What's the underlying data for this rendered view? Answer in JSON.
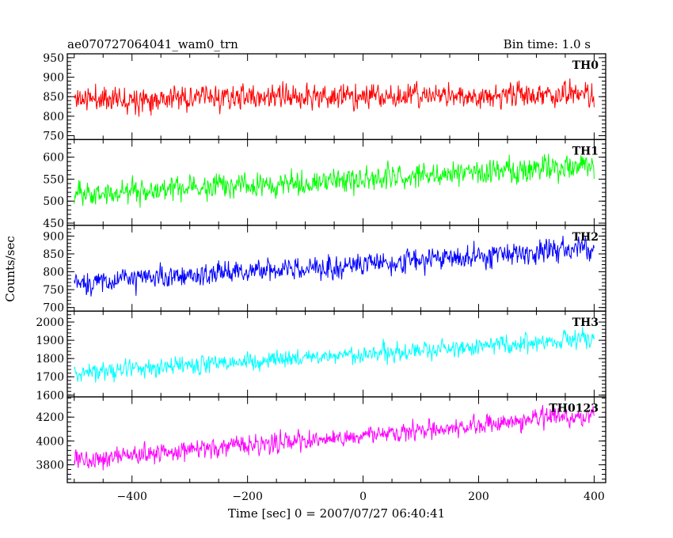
{
  "header": {
    "title": "ae070727064041_wam0_trn",
    "bin_time": "Bin time: 1.0 s"
  },
  "chart_data": {
    "type": "line",
    "xlabel": "Time [sec] 0 = 2007/07/27 06:40:41",
    "ylabel": "Counts/sec",
    "xlim": [
      -512,
      420
    ],
    "x_start": -500,
    "x_end": 400,
    "x_step": 1,
    "x_ticks": [
      -400,
      -200,
      0,
      200,
      400
    ],
    "x_tick_labels": [
      "−400",
      "−200",
      "0",
      "200",
      "400"
    ],
    "panels": [
      {
        "label": "TH0",
        "color": "#ff0000",
        "ylim": [
          740,
          960
        ],
        "y_ticks": [
          750,
          800,
          850,
          900,
          950
        ],
        "trend_start": 845,
        "trend_end": 855,
        "noise": 30,
        "seed": 11
      },
      {
        "label": "TH1",
        "color": "#00ff00",
        "ylim": [
          445,
          640
        ],
        "y_ticks": [
          450,
          500,
          550,
          600
        ],
        "trend_start": 515,
        "trend_end": 580,
        "noise": 26,
        "seed": 23
      },
      {
        "label": "TH2",
        "color": "#0000ff",
        "ylim": [
          690,
          930
        ],
        "y_ticks": [
          700,
          750,
          800,
          850,
          900
        ],
        "trend_start": 768,
        "trend_end": 865,
        "noise": 30,
        "seed": 37
      },
      {
        "label": "TH3",
        "color": "#00ffff",
        "ylim": [
          1590,
          2060
        ],
        "y_ticks": [
          1600,
          1700,
          1800,
          1900,
          2000
        ],
        "trend_start": 1720,
        "trend_end": 1910,
        "noise": 48,
        "seed": 41
      },
      {
        "label": "TH0123",
        "color": "#ff00ff",
        "ylim": [
          3650,
          4370
        ],
        "y_ticks": [
          3800,
          4000,
          4200
        ],
        "trend_start": 3840,
        "trend_end": 4210,
        "noise": 75,
        "seed": 53
      }
    ]
  }
}
